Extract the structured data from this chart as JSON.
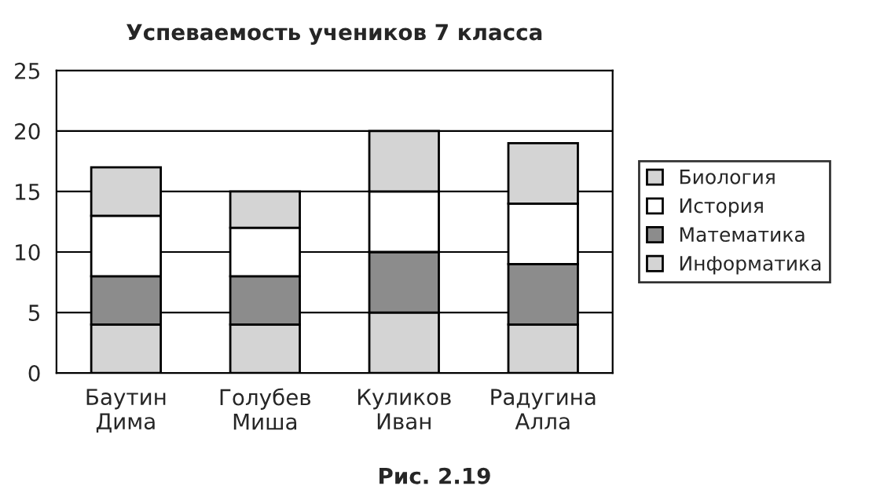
{
  "chart_data": {
    "type": "bar",
    "title": "Успеваемость учеников 7 класса",
    "categories": [
      "Баутин\nДима",
      "Голубев\nМиша",
      "Куликов\nИван",
      "Радугина\nАлла"
    ],
    "stacked": true,
    "series": [
      {
        "name": "Информатика",
        "color": "#d4d4d4",
        "values": [
          4,
          4,
          5,
          4
        ]
      },
      {
        "name": "Математика",
        "color": "#8c8c8c",
        "values": [
          4,
          4,
          5,
          5
        ]
      },
      {
        "name": "История",
        "color": "#ffffff",
        "values": [
          5,
          4,
          5,
          5
        ]
      },
      {
        "name": "Биология",
        "color": "#d4d4d4",
        "values": [
          4,
          3,
          5,
          5
        ]
      }
    ],
    "ylim": [
      0,
      25
    ],
    "yticks": [
      0,
      5,
      10,
      15,
      20,
      25
    ],
    "grid": "y",
    "legend": "right",
    "annotations": [
      "Рис. 2.19"
    ]
  }
}
